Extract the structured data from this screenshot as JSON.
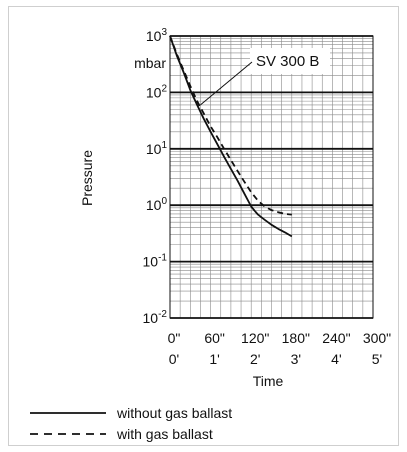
{
  "chart_data": {
    "type": "line",
    "ylabel": "Pressure",
    "xlabel": "Time",
    "y_unit": "mbar",
    "y_scale": "log",
    "ylim": [
      0.01,
      1000
    ],
    "xlim": [
      0,
      300
    ],
    "y_ticks": [
      {
        "value": 1000,
        "base": "10",
        "exp": "3"
      },
      {
        "value": 100,
        "base": "10",
        "exp": "2"
      },
      {
        "value": 10,
        "base": "10",
        "exp": "1"
      },
      {
        "value": 1,
        "base": "10",
        "exp": "0"
      },
      {
        "value": 0.1,
        "base": "10",
        "exp": "-1"
      },
      {
        "value": 0.01,
        "base": "10",
        "exp": "-2"
      }
    ],
    "x_ticks": [
      {
        "value": 0,
        "seconds": "0\"",
        "minutes": "0'"
      },
      {
        "value": 60,
        "seconds": "60\"",
        "minutes": "1'"
      },
      {
        "value": 120,
        "seconds": "120\"",
        "minutes": "2'"
      },
      {
        "value": 180,
        "seconds": "180\"",
        "minutes": "3'"
      },
      {
        "value": 240,
        "seconds": "240\"",
        "minutes": "4'"
      },
      {
        "value": 300,
        "seconds": "300\"",
        "minutes": "5'"
      }
    ],
    "annotation": {
      "text": "SV 300 B",
      "x": 130,
      "y": 400
    },
    "series": [
      {
        "name": "without gas ballast",
        "style": "solid",
        "color": "#111111",
        "x": [
          0,
          10,
          20,
          30,
          40,
          50,
          60,
          70,
          80,
          90,
          100,
          110,
          120,
          125,
          130,
          140,
          150,
          160,
          170,
          180
        ],
        "y": [
          1000,
          450,
          230,
          110,
          60,
          34,
          20,
          12,
          7.2,
          4.4,
          2.7,
          1.6,
          0.95,
          0.8,
          0.68,
          0.55,
          0.45,
          0.38,
          0.33,
          0.28
        ]
      },
      {
        "name": "with gas ballast",
        "style": "dashed",
        "color": "#111111",
        "x": [
          0,
          10,
          20,
          30,
          40,
          50,
          60,
          70,
          80,
          90,
          100,
          110,
          120,
          130,
          140,
          150,
          160,
          170,
          180
        ],
        "y": [
          1000,
          480,
          250,
          130,
          70,
          42,
          25,
          16,
          10,
          6.3,
          4.0,
          2.6,
          1.7,
          1.2,
          0.95,
          0.82,
          0.75,
          0.7,
          0.68
        ]
      }
    ],
    "legend": {
      "position": "bottom-left"
    },
    "grid": true
  }
}
